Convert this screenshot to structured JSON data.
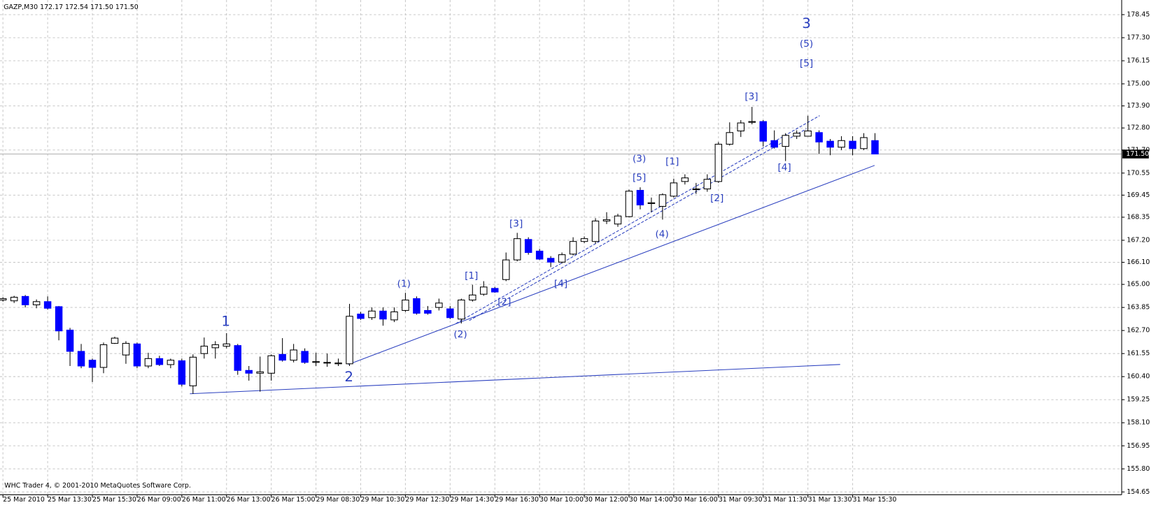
{
  "chart_data": {
    "type": "candlestick",
    "header": "GAZP,M30  172.17 172.54 171.50 171.50",
    "copyright": "WHC Trader 4, © 2001-2010 MetaQuotes Software Corp.",
    "categories": [
      "25 Mar 2010",
      null,
      null,
      null,
      "25 Mar 13:30",
      null,
      null,
      null,
      "25 Mar 15:30",
      null,
      null,
      null,
      "26 Mar 09:00",
      null,
      null,
      null,
      "26 Mar 11:00",
      null,
      null,
      null,
      "26 Mar 13:00",
      null,
      null,
      null,
      "26 Mar 15:00",
      null,
      null,
      null,
      "29 Mar 08:30",
      null,
      null,
      null,
      "29 Mar 10:30",
      null,
      null,
      null,
      "29 Mar 12:30",
      null,
      null,
      null,
      "29 Mar 14:30",
      null,
      null,
      null,
      "29 Mar 16:30",
      null,
      null,
      null,
      "30 Mar 10:00",
      null,
      null,
      null,
      "30 Mar 12:00",
      null,
      null,
      null,
      "30 Mar 14:00",
      null,
      null,
      null,
      "30 Mar 16:00",
      null,
      null,
      null,
      "31 Mar 09:30",
      null,
      null,
      null,
      "31 Mar 11:30",
      null,
      null,
      null,
      "31 Mar 13:30",
      null,
      null,
      null,
      "31 Mar 15:30",
      null,
      null
    ],
    "open": [
      164.22,
      164.18,
      164.4,
      163.98,
      164.14,
      163.89,
      162.72,
      161.66,
      161.22,
      160.86,
      162.06,
      161.48,
      162.03,
      160.93,
      161.3,
      161.0,
      161.19,
      159.94,
      161.55,
      161.84,
      161.92,
      161.95,
      160.71,
      160.57,
      160.57,
      161.51,
      161.22,
      161.66,
      161.11,
      161.08,
      161.04,
      161.04,
      163.52,
      163.34,
      163.67,
      163.23,
      163.7,
      164.29,
      163.7,
      163.85,
      163.78,
      163.27,
      164.22,
      164.51,
      164.8,
      165.24,
      166.22,
      167.24,
      166.66,
      166.3,
      166.11,
      166.51,
      167.14,
      167.14,
      168.16,
      168.01,
      168.38,
      169.69,
      169.03,
      168.89,
      169.4,
      170.13,
      169.73,
      169.76,
      170.13,
      171.99,
      172.65,
      173.08,
      173.12,
      172.17,
      171.88,
      172.39,
      172.39,
      172.57,
      172.14,
      171.84,
      172.14,
      171.77,
      172.17
    ],
    "high": [
      164.36,
      164.43,
      164.47,
      164.25,
      164.4,
      163.92,
      162.83,
      162.03,
      161.3,
      162.1,
      162.39,
      162.17,
      162.1,
      161.59,
      161.44,
      161.3,
      161.3,
      161.51,
      162.35,
      162.17,
      162.57,
      162.03,
      160.93,
      161.4,
      161.51,
      162.32,
      162.03,
      161.81,
      161.59,
      161.55,
      161.3,
      164.03,
      163.63,
      163.85,
      163.85,
      163.85,
      164.58,
      164.4,
      163.92,
      164.29,
      163.92,
      164.29,
      164.98,
      165.16,
      164.87,
      166.59,
      167.57,
      167.35,
      166.77,
      166.41,
      166.59,
      167.35,
      167.39,
      168.3,
      168.6,
      168.52,
      169.73,
      169.84,
      169.33,
      169.54,
      170.27,
      170.49,
      170.06,
      170.49,
      172.1,
      173.08,
      173.19,
      173.85,
      173.19,
      172.68,
      172.54,
      172.68,
      173.41,
      172.68,
      172.25,
      172.39,
      172.39,
      172.54,
      172.54
    ],
    "low": [
      164.14,
      164.07,
      163.85,
      163.81,
      163.74,
      162.21,
      160.93,
      160.82,
      160.13,
      160.57,
      162.03,
      161.04,
      160.82,
      160.82,
      160.93,
      160.82,
      159.91,
      159.54,
      161.3,
      161.3,
      161.81,
      160.49,
      160.2,
      159.65,
      160.2,
      161.15,
      161.11,
      161.04,
      160.93,
      160.89,
      160.93,
      160.93,
      163.23,
      163.23,
      162.94,
      163.12,
      163.63,
      163.49,
      163.49,
      163.7,
      163.27,
      163.05,
      164.14,
      164.43,
      164.58,
      165.16,
      166.15,
      166.48,
      166.22,
      165.86,
      166.04,
      166.44,
      167.06,
      167.03,
      168.01,
      167.87,
      168.34,
      168.74,
      168.6,
      168.23,
      169.33,
      169.98,
      169.51,
      169.62,
      170.06,
      171.92,
      172.35,
      172.98,
      171.88,
      171.77,
      171.15,
      172.25,
      172.39,
      171.52,
      171.44,
      171.7,
      171.44,
      171.7,
      171.5
    ],
    "close": [
      164.29,
      164.36,
      163.98,
      164.14,
      163.81,
      162.68,
      161.66,
      160.93,
      160.86,
      161.99,
      162.32,
      162.06,
      160.93,
      161.3,
      161.0,
      161.22,
      160.02,
      161.37,
      161.92,
      161.99,
      162.03,
      160.71,
      160.57,
      160.64,
      161.44,
      161.22,
      161.73,
      161.11,
      161.15,
      161.11,
      161.08,
      163.41,
      163.3,
      163.67,
      163.27,
      163.63,
      164.22,
      163.56,
      163.56,
      164.07,
      163.34,
      164.22,
      164.47,
      164.87,
      164.62,
      166.22,
      167.28,
      166.59,
      166.26,
      166.11,
      166.48,
      167.14,
      167.28,
      168.16,
      168.23,
      168.41,
      169.65,
      168.96,
      169.07,
      169.47,
      170.06,
      170.31,
      169.76,
      170.24,
      171.99,
      172.57,
      173.05,
      173.12,
      172.14,
      171.84,
      172.43,
      172.54,
      172.65,
      172.1,
      171.84,
      172.17,
      171.77,
      172.32,
      171.5
    ],
    "up_color": "#ffffff",
    "down_color": "#0000ff",
    "wick_color": "#000000",
    "current_price": {
      "value": 171.5,
      "label": "171.50"
    },
    "ylim": [
      154.51,
      179.18
    ],
    "yticks": [
      {
        "value": 178.45,
        "label": "178.45"
      },
      {
        "value": 177.3,
        "label": "177.30"
      },
      {
        "value": 176.15,
        "label": "176.15"
      },
      {
        "value": 175,
        "label": "175.00"
      },
      {
        "value": 173.9,
        "label": "173.90"
      },
      {
        "value": 172.8,
        "label": "172.80"
      },
      {
        "value": 171.7,
        "label": "171.70"
      },
      {
        "value": 170.55,
        "label": "170.55"
      },
      {
        "value": 169.45,
        "label": "169.45"
      },
      {
        "value": 168.35,
        "label": "168.35"
      },
      {
        "value": 167.2,
        "label": "167.20"
      },
      {
        "value": 166.1,
        "label": "166.10"
      },
      {
        "value": 165,
        "label": "165.00"
      },
      {
        "value": 163.85,
        "label": "163.85"
      },
      {
        "value": 162.7,
        "label": "162.70"
      },
      {
        "value": 161.55,
        "label": "161.55"
      },
      {
        "value": 160.4,
        "label": "160.40"
      },
      {
        "value": 159.25,
        "label": "159.25"
      },
      {
        "value": 158.1,
        "label": "158.10"
      },
      {
        "value": 156.95,
        "label": "156.95"
      },
      {
        "value": 155.8,
        "label": "155.80"
      },
      {
        "value": 154.65,
        "label": "154.65"
      }
    ],
    "grid": true,
    "annotations": [
      "1",
      "2",
      "3",
      "(5)",
      "[5]",
      "(1)",
      "[1]",
      "[2]",
      "(2)",
      "[3]",
      "[4]",
      "(3)",
      "[5]",
      "(4)",
      "[1]",
      "[2]",
      "[3]",
      "[4]"
    ]
  }
}
